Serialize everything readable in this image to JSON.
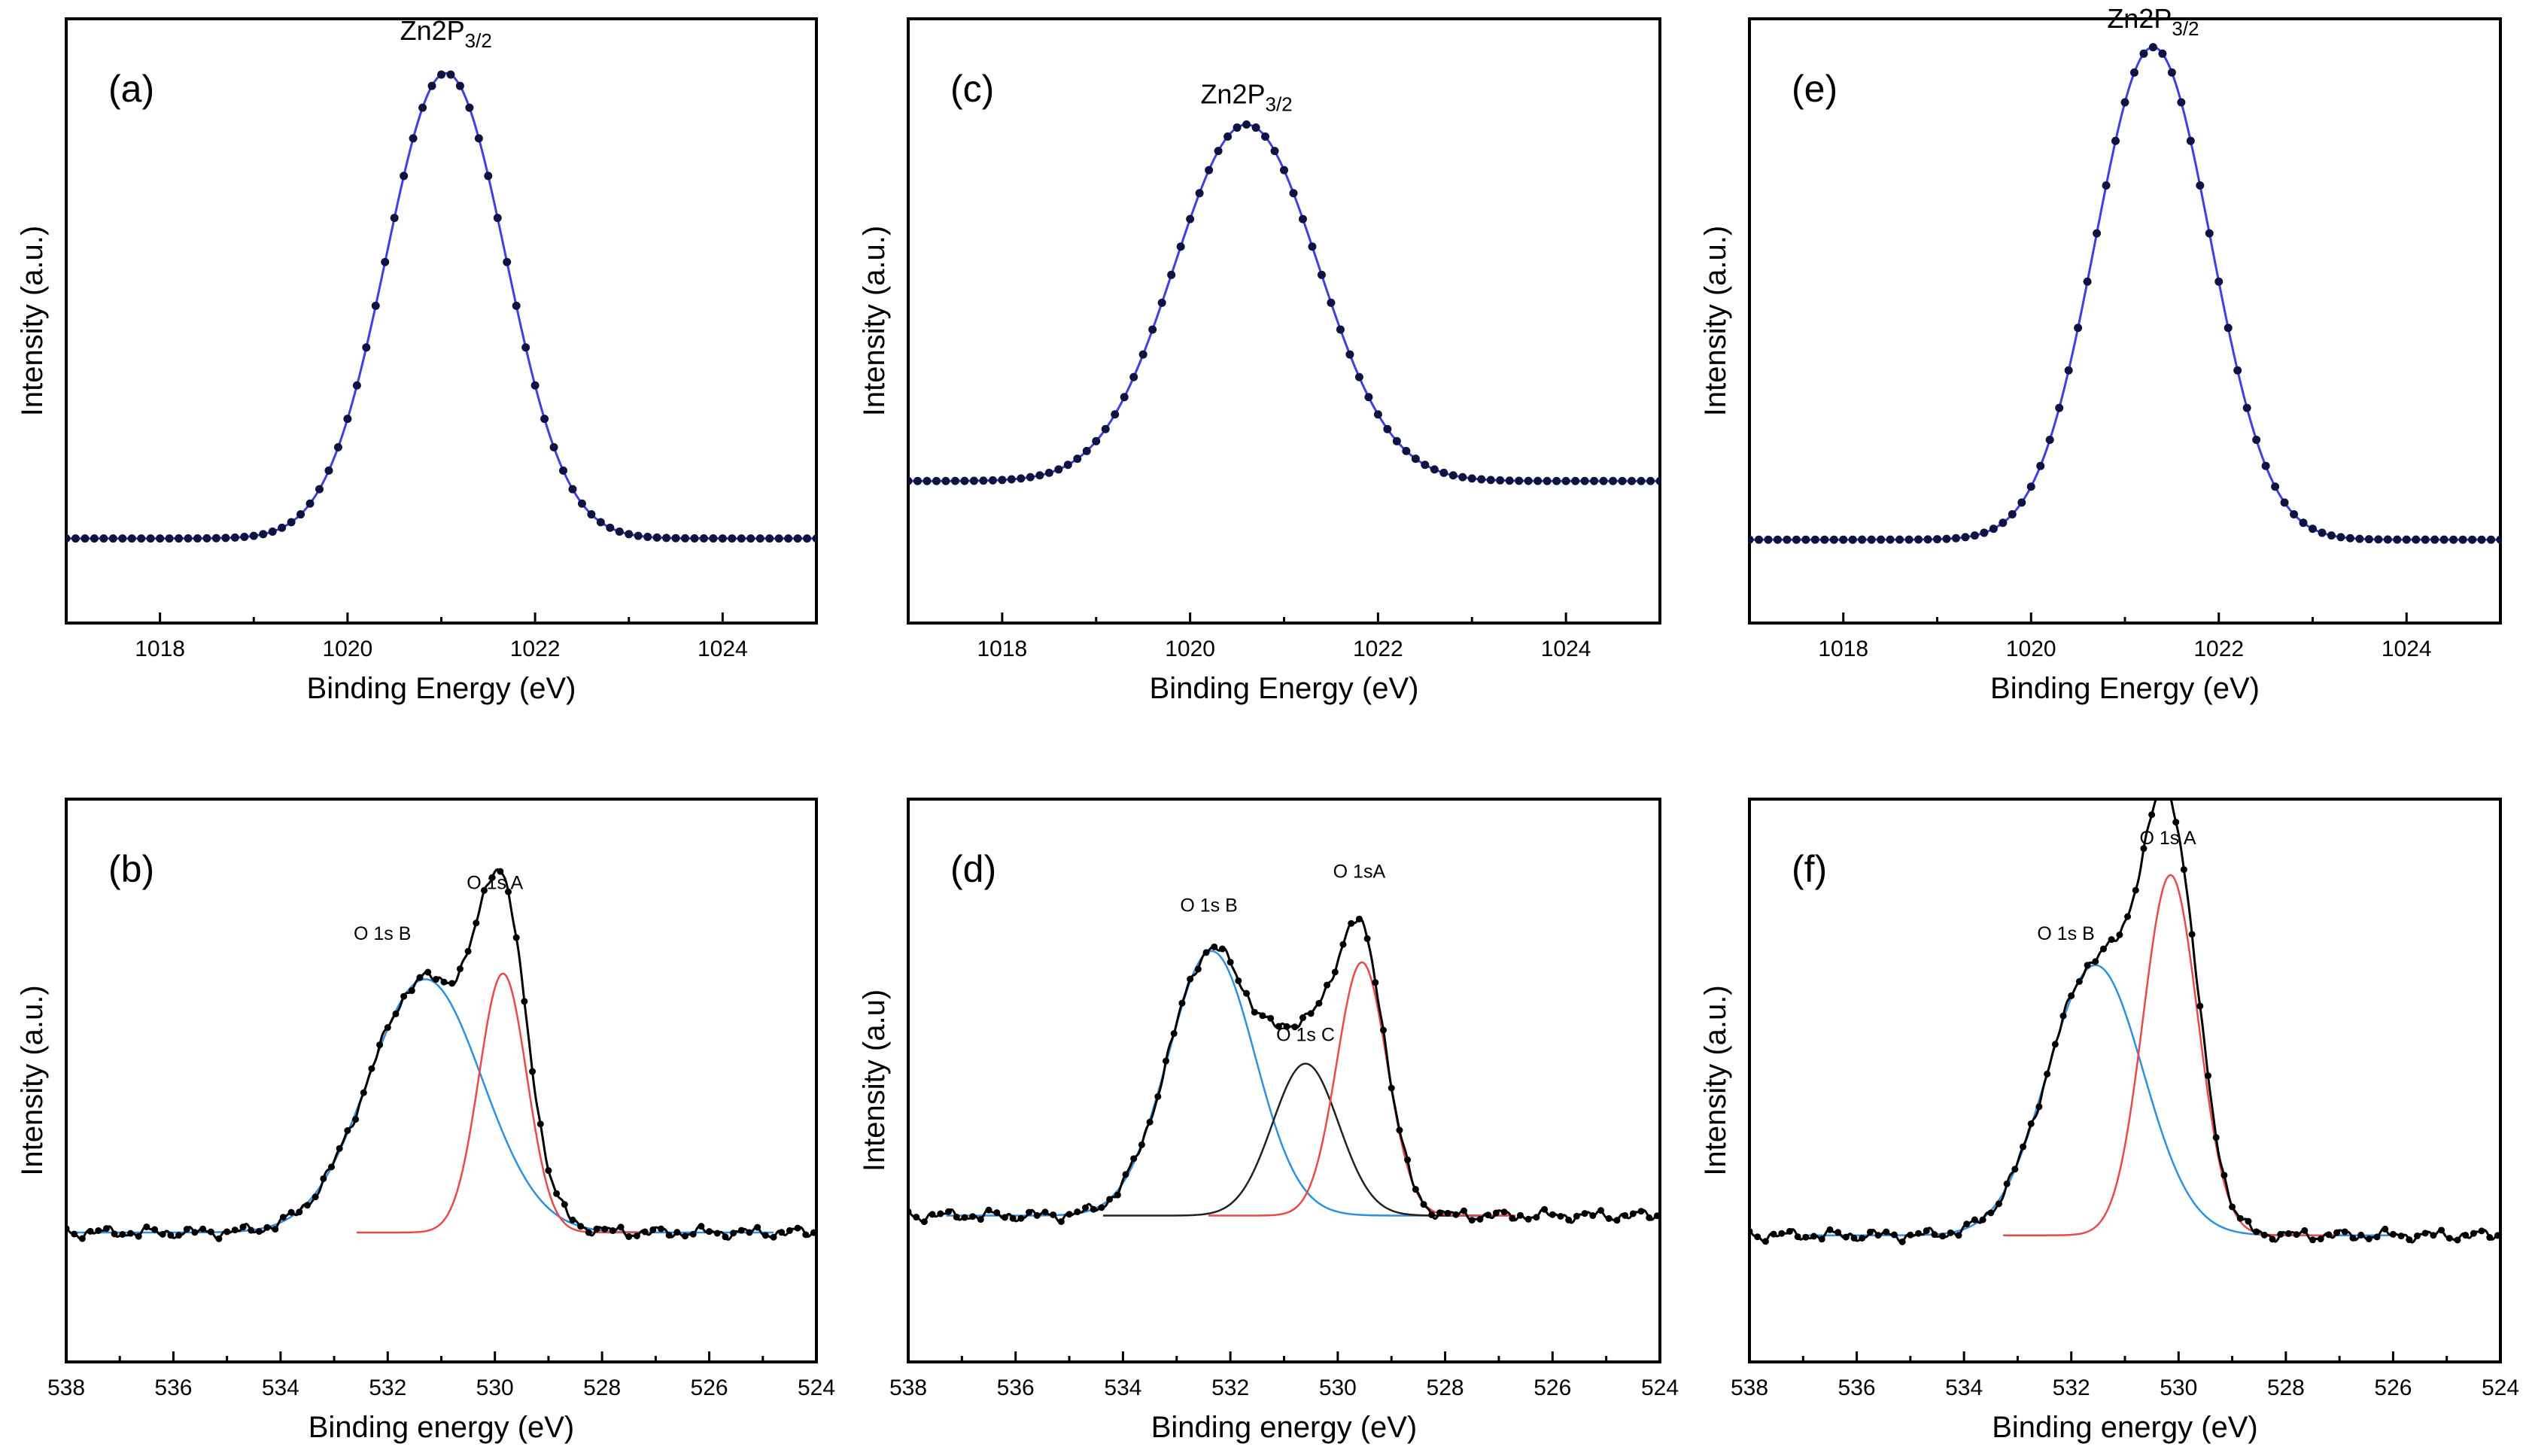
{
  "colors": {
    "data_points": "#0d1440",
    "fit_blue": "#3f3fe6",
    "component_red": "#e84a4a",
    "component_blue": "#2f8fe0",
    "component_black": "#222222",
    "data_black": "#000000"
  },
  "chart_data": [
    {
      "panel": "(a)",
      "type": "line",
      "region": "Zn 2p",
      "xlabel": "Binding Energy (eV)",
      "ylabel": "Intensity (a.u.)",
      "xlim": [
        1017,
        1025
      ],
      "ylim": [
        0,
        1
      ],
      "xticks": [
        1018,
        1020,
        1022,
        1024
      ],
      "xtick_labels": [
        "1018",
        "1020",
        "1022",
        "1024"
      ],
      "annotation": {
        "base": "Zn2P",
        "sub": "3/2",
        "x": 1021.05,
        "y": 0.965
      },
      "peak": {
        "center": 1021.05,
        "fwhm": 1.5,
        "height": 0.77,
        "baseline": 0.14
      },
      "point_step": 0.1,
      "fit_color": "#3f3fe6",
      "points_color": "#0d1440"
    },
    {
      "panel": "(b)",
      "type": "line",
      "region": "O 1s",
      "xlabel": "Binding energy (eV)",
      "ylabel": "Intensity (a.u.)",
      "xlim": [
        538,
        524
      ],
      "ylim": [
        0,
        1
      ],
      "xticks": [
        538,
        536,
        534,
        532,
        530,
        528,
        526,
        524
      ],
      "xtick_labels": [
        "538",
        "536",
        "534",
        "532",
        "530",
        "528",
        "526",
        "524"
      ],
      "baseline": 0.23,
      "components": [
        {
          "name": "O 1s B",
          "center": 531.3,
          "fwhm": 2.5,
          "height": 0.45,
          "color": "#2f8fe0"
        },
        {
          "name": "O 1s A",
          "center": 529.85,
          "fwhm": 1.05,
          "height": 0.46,
          "color": "#e84a4a"
        }
      ],
      "labels": [
        {
          "text": "O 1s B",
          "x": 532.1,
          "y": 0.75
        },
        {
          "text": "O 1s A",
          "x": 530.0,
          "y": 0.84
        }
      ],
      "point_step": 0.15,
      "points_color": "#000000"
    },
    {
      "panel": "(c)",
      "type": "line",
      "region": "Zn 2p",
      "xlabel": "Binding Energy (eV)",
      "ylabel": "Intensity (a.u.)",
      "xlim": [
        1017,
        1025
      ],
      "ylim": [
        0,
        1
      ],
      "xticks": [
        1018,
        1020,
        1022,
        1024
      ],
      "xtick_labels": [
        "1018",
        "1020",
        "1022",
        "1024"
      ],
      "annotation": {
        "base": "Zn2P",
        "sub": "3/2",
        "x": 1020.6,
        "y": 0.86
      },
      "peak": {
        "center": 1020.6,
        "fwhm": 1.8,
        "height": 0.59,
        "baseline": 0.235
      },
      "point_step": 0.1,
      "fit_color": "#3f3fe6",
      "points_color": "#0d1440"
    },
    {
      "panel": "(d)",
      "type": "line",
      "region": "O 1s",
      "xlabel": "Binding energy (eV)",
      "ylabel": "Intensity (a.u)",
      "xlim": [
        538,
        524
      ],
      "ylim": [
        0,
        1
      ],
      "xticks": [
        538,
        536,
        534,
        532,
        530,
        528,
        526,
        524
      ],
      "xtick_labels": [
        "538",
        "536",
        "534",
        "532",
        "530",
        "528",
        "526",
        "524"
      ],
      "baseline": 0.26,
      "components": [
        {
          "name": "O 1s B",
          "center": 532.35,
          "fwhm": 1.9,
          "height": 0.47,
          "color": "#2f8fe0"
        },
        {
          "name": "O 1s C",
          "center": 530.6,
          "fwhm": 1.45,
          "height": 0.27,
          "color": "#222222"
        },
        {
          "name": "O 1sA",
          "center": 529.55,
          "fwhm": 1.1,
          "height": 0.45,
          "color": "#e84a4a"
        }
      ],
      "labels": [
        {
          "text": "O 1s B",
          "x": 532.4,
          "y": 0.8
        },
        {
          "text": "O 1s C",
          "x": 530.6,
          "y": 0.57
        },
        {
          "text": "O 1sA",
          "x": 529.6,
          "y": 0.86
        }
      ],
      "point_step": 0.15,
      "points_color": "#000000"
    },
    {
      "panel": "(e)",
      "type": "line",
      "region": "Zn 2p",
      "xlabel": "Binding Energy (eV)",
      "ylabel": "Intensity (a.u.)",
      "xlim": [
        1017,
        1025
      ],
      "ylim": [
        0,
        1
      ],
      "xticks": [
        1018,
        1020,
        1022,
        1024
      ],
      "xtick_labels": [
        "1018",
        "1020",
        "1022",
        "1024"
      ],
      "annotation": {
        "base": "Zn2P",
        "sub": "3/2",
        "x": 1021.3,
        "y": 0.985
      },
      "peak": {
        "center": 1021.3,
        "fwhm": 1.45,
        "height": 0.815,
        "baseline": 0.138
      },
      "point_step": 0.1,
      "fit_color": "#3f3fe6",
      "points_color": "#0d1440"
    },
    {
      "panel": "(f)",
      "type": "line",
      "region": "O 1s",
      "xlabel": "Binding energy (eV)",
      "ylabel": "Intensity (a.u.)",
      "xlim": [
        538,
        524
      ],
      "ylim": [
        0,
        1
      ],
      "xticks": [
        538,
        536,
        534,
        532,
        530,
        528,
        526,
        524
      ],
      "xtick_labels": [
        "538",
        "536",
        "534",
        "532",
        "530",
        "528",
        "526",
        "524"
      ],
      "baseline": 0.225,
      "components": [
        {
          "name": "O 1s B",
          "center": 531.55,
          "fwhm": 2.1,
          "height": 0.48,
          "color": "#2f8fe0"
        },
        {
          "name": "O 1s A",
          "center": 530.15,
          "fwhm": 1.2,
          "height": 0.64,
          "color": "#e84a4a"
        }
      ],
      "labels": [
        {
          "text": "O 1s B",
          "x": 532.1,
          "y": 0.75
        },
        {
          "text": "O 1s A",
          "x": 530.2,
          "y": 0.92
        }
      ],
      "point_step": 0.15,
      "points_color": "#000000"
    }
  ]
}
